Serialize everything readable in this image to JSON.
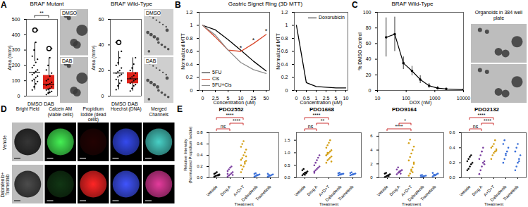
{
  "chart_data": [
    {
      "panel": "A",
      "type": "box",
      "title": "BRAF Mutant",
      "categories": [
        "DMSO",
        "DAB"
      ],
      "colors": [
        "#ffffff",
        "#e2231a"
      ],
      "values": [
        [
          40,
          60,
          80,
          95,
          100,
          110,
          120,
          130,
          140,
          150,
          160,
          170,
          185,
          200,
          220,
          240,
          260,
          300,
          350,
          430
        ],
        [
          10,
          20,
          25,
          30,
          40,
          45,
          50,
          60,
          70,
          75,
          80,
          90,
          100,
          110,
          130,
          150,
          170,
          200,
          250,
          310
        ]
      ],
      "ylabel": "Area (mm²)",
      "ylim": [
        0,
        500
      ],
      "yticks": [
        0,
        100,
        200,
        300,
        400,
        500
      ],
      "comparisons": [
        {
          "from": "DMSO",
          "to": "DAB",
          "label": "**"
        }
      ],
      "image_labels": [
        "DMSO",
        "DAB"
      ]
    },
    {
      "type": "box",
      "title": "BRAF Wild-Type",
      "categories": [
        "DMSO",
        "DAB"
      ],
      "colors": [
        "#ffffff",
        "#e2231a"
      ],
      "values": [
        [
          5,
          8,
          10,
          12,
          13,
          15,
          16,
          17,
          18,
          19,
          20,
          22,
          24,
          26,
          30,
          35,
          42
        ],
        [
          4,
          6,
          8,
          9,
          10,
          11,
          12,
          13,
          14,
          15,
          16,
          18,
          20,
          22,
          25,
          30
        ]
      ],
      "ylabel": "Area (mm²)",
      "ylim": [
        0,
        60
      ],
      "yticks": [
        0,
        20,
        40,
        60
      ],
      "image_labels": [
        "DMSO",
        "DAB"
      ]
    },
    {
      "panel": "B",
      "type": "line",
      "title": "Gastric Signet Ring (3D MTT)",
      "categories": [
        "0",
        "2.5",
        "5",
        "10",
        "25",
        "50"
      ],
      "xlabel": "Concentration (uM)",
      "ylabel": "Normalized MTT",
      "ylim": [
        0,
        1.2
      ],
      "yticks": [
        0,
        0.2,
        0.4,
        0.6,
        0.8,
        1,
        1.2
      ],
      "legend": "bottom-left",
      "series": [
        {
          "name": "5FU",
          "color": "#000000",
          "values": [
            1.0,
            0.93,
            0.78,
            0.62,
            0.45,
            0.3
          ]
        },
        {
          "name": "Cis",
          "color": "#d9472b",
          "values": [
            1.0,
            0.82,
            0.62,
            0.6,
            0.72,
            0.86
          ]
        },
        {
          "name": "5FU+Cis",
          "color": "#8c8c8c",
          "values": [
            1.0,
            0.85,
            0.62,
            0.43,
            0.32,
            0.26
          ]
        }
      ],
      "annotations": [
        {
          "category": "10",
          "series": "Cis",
          "text": "*"
        },
        {
          "category": "25",
          "series": "Cis",
          "text": "*"
        },
        {
          "category": "50",
          "series": "Cis",
          "text": "*"
        }
      ]
    },
    {
      "type": "line",
      "categories": [
        "0",
        "0.5",
        "1",
        "2.5",
        "5",
        "10"
      ],
      "xlabel": "Concentration (uM)",
      "ylabel": "Normalized MTT",
      "ylim": [
        0,
        1.2
      ],
      "yticks": [
        0,
        0.2,
        0.4,
        0.6,
        0.8,
        1,
        1.2
      ],
      "legend": "top-right",
      "series": [
        {
          "name": "Doxorubicin",
          "color": "#000000",
          "values": [
            1.0,
            0.12,
            0.06,
            0.05,
            0.04,
            0.04
          ]
        }
      ]
    },
    {
      "panel": "C",
      "type": "line",
      "title": "BRAF Wild-Type",
      "x": [
        20,
        40,
        80,
        160,
        310,
        630,
        1250,
        2500,
        10000
      ],
      "values": [
        68,
        72,
        35,
        25,
        14,
        6,
        3,
        2,
        1
      ],
      "errors": [
        25,
        22,
        8,
        6,
        5,
        3,
        2,
        1,
        1
      ],
      "color": "#000000",
      "marker": "circle",
      "log": "x",
      "xlabel": "DOX (nM)",
      "ylabel": "% DMSO Control",
      "xlim": [
        10,
        10000
      ],
      "xticks": [
        10,
        100,
        1000,
        10000
      ],
      "ylim": [
        0,
        100
      ],
      "yticks": [
        0,
        20,
        40,
        60,
        80,
        100
      ],
      "image_caption": "Organoids in 384 well plate"
    },
    {
      "panel": "E",
      "type": "scatter",
      "title": "PDO2552",
      "categories": [
        "Vehicle",
        "Drug A",
        "A+D+T",
        "Dabrafenib",
        "Trametinib"
      ],
      "colors": [
        "#000000",
        "#7b3fa0",
        "#d4a017",
        "#3a6fd8",
        "#3a6fd8"
      ],
      "values": [
        [
          0.02,
          0.03,
          0.04,
          0.05,
          0.06,
          0.07,
          0.08,
          0.1,
          0.04,
          0.05
        ],
        [
          0.02,
          0.04,
          0.06,
          0.08,
          0.1,
          0.12,
          0.15,
          0.18,
          0.2,
          0.05,
          0.07
        ],
        [
          0.1,
          0.15,
          0.2,
          0.25,
          0.3,
          0.32,
          0.35,
          0.4,
          0.45,
          0.5,
          0.55,
          0.6,
          0.65,
          0.28,
          0.38,
          0.22
        ],
        [
          0.02,
          0.03,
          0.04,
          0.05,
          0.06,
          0.07,
          0.08,
          0.05
        ],
        [
          0.02,
          0.03,
          0.04,
          0.05,
          0.06,
          0.07,
          0.05,
          0.04
        ]
      ],
      "xlabel": "Treatment",
      "ylabel": "Relative Intensity (Normalized Propidium Iodide)",
      "ylim": [
        0,
        0.8
      ],
      "yticks": [
        {
          "value": 0,
          "label": "0.0"
        },
        0.2,
        0.4,
        0.6,
        0.8
      ],
      "comparisons": [
        {
          "from": "Vehicle",
          "to": "Drug A",
          "label": "ns"
        },
        {
          "from": "Drug A",
          "to": "A+D+T",
          "label": "****"
        },
        {
          "from": "Vehicle",
          "to": "A+D+T",
          "label": "****"
        }
      ]
    },
    {
      "type": "scatter",
      "title": "PDO1668",
      "categories": [
        "Vehicle",
        "Drug A",
        "A+D+T",
        "Dabrafenib",
        "Trametinib"
      ],
      "colors": [
        "#000000",
        "#7b3fa0",
        "#d4a017",
        "#3a6fd8",
        "#3a6fd8"
      ],
      "values": [
        [
          0.1,
          0.15,
          0.2,
          0.22,
          0.25,
          0.3,
          0.35,
          0.12,
          0.18
        ],
        [
          0.2,
          0.3,
          0.35,
          0.4,
          0.45,
          0.5,
          0.6,
          0.7,
          0.8,
          0.9,
          0.25
        ],
        [
          0.6,
          0.7,
          0.75,
          0.8,
          0.85,
          0.9,
          0.95,
          1.0,
          1.05,
          1.1,
          1.2,
          1.3,
          1.4,
          1.5,
          0.65,
          0.9,
          1.0
        ],
        [
          0.1,
          0.12,
          0.14,
          0.15,
          0.16,
          0.18,
          0.2,
          0.13
        ],
        [
          0.1,
          0.12,
          0.14,
          0.15,
          0.17,
          0.19,
          0.22,
          0.13
        ]
      ],
      "xlabel": "Treatment",
      "ylim": [
        0,
        1.8
      ],
      "yticks": [
        {
          "value": 0,
          "label": "0.0"
        },
        0.5,
        {
          "value": 1,
          "label": "1.0"
        },
        1.5
      ],
      "comparisons": [
        {
          "from": "Vehicle",
          "to": "Drug A",
          "label": "ns"
        },
        {
          "from": "Drug A",
          "to": "A+D+T",
          "label": "**"
        },
        {
          "from": "Vehicle",
          "to": "A+D+T",
          "label": "****"
        }
      ]
    },
    {
      "type": "scatter",
      "title": "PDO9164",
      "categories": [
        "Vehicle",
        "Drug A",
        "A+D+T",
        "Dabrafenib",
        "Trametinib"
      ],
      "colors": [
        "#000000",
        "#7b3fa0",
        "#d4a017",
        "#3a6fd8",
        "#3a6fd8"
      ],
      "values": [
        [
          0.1,
          0.2,
          0.3,
          0.4,
          0.5,
          0.6,
          0.7,
          0.3,
          0.25
        ],
        [
          0.5,
          0.7,
          0.8,
          1.0,
          1.1,
          1.2,
          1.5,
          0.9,
          0.6
        ],
        [
          0.3,
          0.6,
          1.0,
          1.5,
          2.0,
          2.5,
          3.0,
          3.5,
          4.0,
          4.5,
          5.0,
          5.5,
          1.2,
          0.8,
          2.2
        ],
        [
          0.1,
          0.15,
          0.2,
          0.25,
          0.3,
          0.35,
          0.4,
          0.2
        ],
        [
          0.2,
          0.3,
          0.4,
          0.5,
          0.6,
          0.7,
          0.45,
          0.35
        ]
      ],
      "xlabel": "Treatment",
      "ylim": [
        0,
        6.5
      ],
      "yticks": [
        0,
        2,
        4,
        6
      ],
      "comparisons": [
        {
          "from": "Vehicle",
          "to": "A+D+T",
          "label": "****"
        },
        {
          "from": "Drug A",
          "to": "A+D+T",
          "label": "*"
        }
      ]
    },
    {
      "type": "scatter",
      "title": "PDO2132",
      "categories": [
        "Vehicle",
        "Drug A",
        "A+D+T",
        "Dabrafenib",
        "Trametinib"
      ],
      "colors": [
        "#000000",
        "#7b3fa0",
        "#d4a017",
        "#3a6fd8",
        "#3a6fd8"
      ],
      "values": [
        [
          0.1,
          0.12,
          0.15,
          0.18,
          0.2,
          0.22,
          0.25,
          0.28,
          0.3
        ],
        [
          0.05,
          0.1,
          0.15,
          0.2,
          0.22,
          0.25,
          0.3,
          0.35,
          0.4,
          0.18
        ],
        [
          0.25,
          0.3,
          0.33,
          0.35,
          0.38,
          0.4,
          0.42,
          0.45,
          0.5,
          0.36
        ],
        [
          0.2,
          0.25,
          0.3,
          0.35,
          0.4,
          0.45,
          0.5,
          0.32
        ],
        [
          0.1,
          0.15,
          0.2,
          0.25,
          0.3,
          0.35,
          0.4,
          0.45,
          0.22
        ]
      ],
      "xlabel": "Treatment",
      "ylim": [
        0,
        0.6
      ],
      "yticks": [
        {
          "value": 0,
          "label": "0.0"
        },
        0.2,
        0.4,
        0.6
      ],
      "comparisons": [
        {
          "from": "Vehicle",
          "to": "Drug A",
          "label": "ns"
        },
        {
          "from": "Drug A",
          "to": "A+D+T",
          "label": "****"
        },
        {
          "from": "Vehicle",
          "to": "A+D+T",
          "label": "****"
        }
      ]
    }
  ],
  "images": {
    "panel": "D",
    "columns": [
      "Bright Field",
      "Calcein AM (viable cells)",
      "Propidium Iodide (dead cells)",
      "Hoechst (DNA)",
      "Merged Channels"
    ],
    "rows": [
      [
        "Vehicle"
      ],
      [
        "Dabrafenib+",
        "Trametinib"
      ]
    ]
  }
}
